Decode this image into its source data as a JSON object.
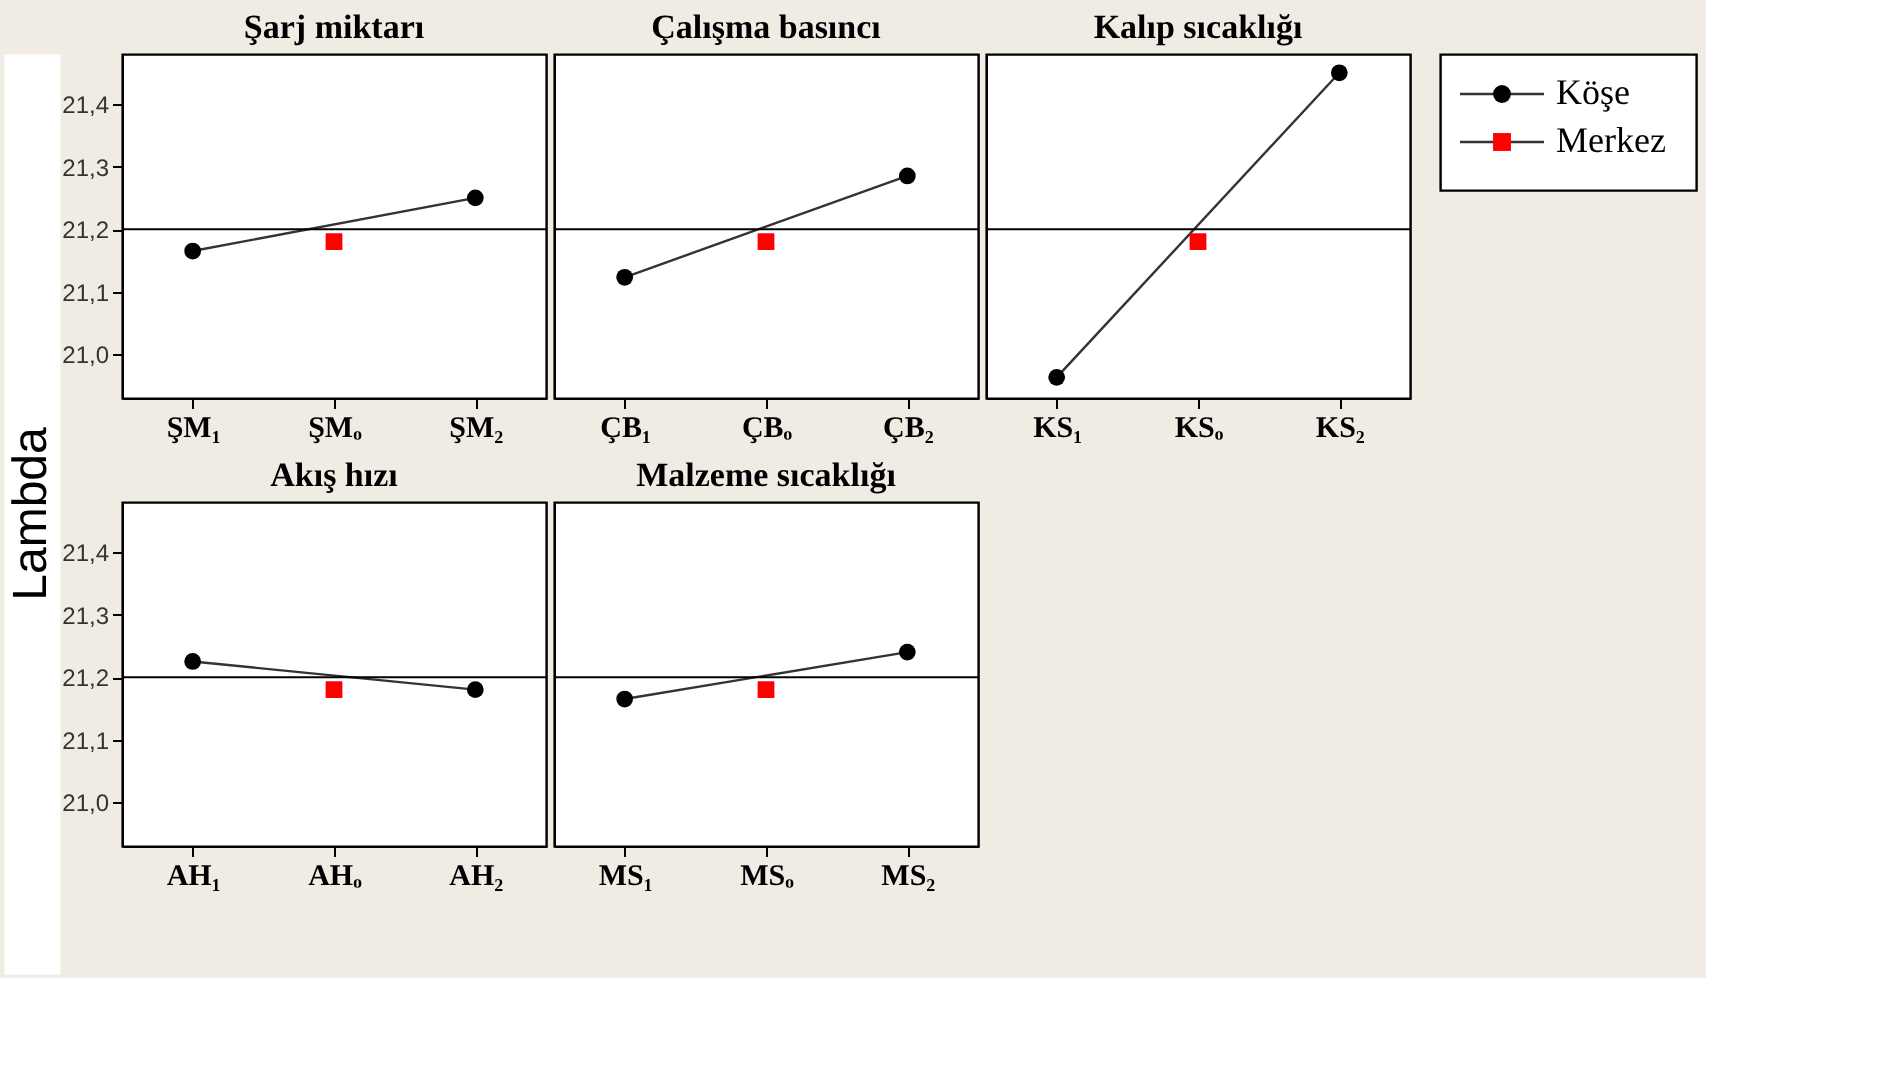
{
  "chart_data": [
    {
      "type": "line",
      "title": "Şarj miktarı",
      "ylabel": "Lambda",
      "legend": "top right",
      "categories": [
        "ŞM₁",
        "ŞMₒ",
        "ŞM₂"
      ],
      "ylim": [
        20.93,
        21.48
      ],
      "yticks": [
        {
          "value": 21.0,
          "label": "21,0"
        },
        {
          "value": 21.1,
          "label": "21,1"
        },
        {
          "value": 21.2,
          "label": "21,2"
        },
        {
          "value": 21.3,
          "label": "21,3"
        },
        {
          "value": 21.4,
          "label": "21,4"
        }
      ],
      "grid": false,
      "ref_lines": [
        {
          "axis": "y",
          "value": 21.2
        }
      ],
      "series": [
        {
          "name": "Köşe",
          "color": "#000000",
          "marker": "circle",
          "values": [
            21.165,
            null,
            21.25
          ]
        },
        {
          "name": "Merkez",
          "color": "#ff0000",
          "marker": "square",
          "values": [
            null,
            21.18,
            null
          ]
        }
      ]
    },
    {
      "type": "line",
      "title": "Çalışma basıncı",
      "categories": [
        "ÇB₁",
        "ÇBₒ",
        "ÇB₂"
      ],
      "ylim": [
        20.93,
        21.48
      ],
      "tick_labels": "x",
      "grid": false,
      "ref_lines": [
        {
          "axis": "y",
          "value": 21.2
        }
      ],
      "series": [
        {
          "color": "#000000",
          "marker": "circle",
          "values": [
            21.123,
            null,
            21.285
          ]
        },
        {
          "color": "#ff0000",
          "marker": "square",
          "values": [
            null,
            21.18,
            null
          ]
        }
      ]
    },
    {
      "type": "line",
      "title": "Kalıp sıcaklığı",
      "categories": [
        "KS₁",
        "KSₒ",
        "KS₂"
      ],
      "ylim": [
        20.93,
        21.48
      ],
      "tick_labels": "x",
      "grid": false,
      "ref_lines": [
        {
          "axis": "y",
          "value": 21.2
        }
      ],
      "series": [
        {
          "color": "#000000",
          "marker": "circle",
          "values": [
            20.963,
            null,
            21.45
          ]
        },
        {
          "color": "#ff0000",
          "marker": "square",
          "values": [
            null,
            21.18,
            null
          ]
        }
      ]
    },
    {
      "type": "line",
      "title": "Akış hızı",
      "categories": [
        "AH₁",
        "AHₒ",
        "AH₂"
      ],
      "ylim": [
        20.93,
        21.48
      ],
      "yticks": [
        {
          "value": 21.0,
          "label": "21,0"
        },
        {
          "value": 21.1,
          "label": "21,1"
        },
        {
          "value": 21.2,
          "label": "21,2"
        },
        {
          "value": 21.3,
          "label": "21,3"
        },
        {
          "value": 21.4,
          "label": "21,4"
        }
      ],
      "grid": false,
      "ref_lines": [
        {
          "axis": "y",
          "value": 21.2
        }
      ],
      "series": [
        {
          "color": "#000000",
          "marker": "circle",
          "values": [
            21.225,
            null,
            21.18
          ]
        },
        {
          "color": "#ff0000",
          "marker": "square",
          "values": [
            null,
            21.18,
            null
          ]
        }
      ]
    },
    {
      "type": "line",
      "title": "Malzeme sıcaklığı",
      "categories": [
        "MS₁",
        "MSₒ",
        "MS₂"
      ],
      "ylim": [
        20.93,
        21.48
      ],
      "tick_labels": "x",
      "grid": false,
      "ref_lines": [
        {
          "axis": "y",
          "value": 21.2
        }
      ],
      "series": [
        {
          "color": "#000000",
          "marker": "circle",
          "values": [
            21.165,
            null,
            21.24
          ]
        },
        {
          "color": "#ff0000",
          "marker": "square",
          "values": [
            null,
            21.18,
            null
          ]
        }
      ]
    }
  ]
}
